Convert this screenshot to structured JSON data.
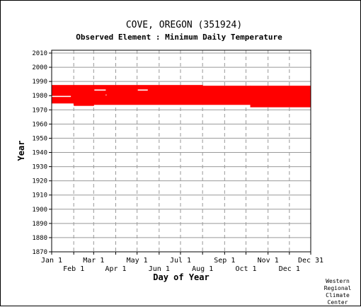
{
  "chart_data": {
    "type": "bar",
    "title": "COVE, OREGON   (351924)",
    "subtitle": "Observed Element : Minimum Daily Temperature",
    "xlabel": "Day of Year",
    "ylabel": "Year",
    "ylim": [
      1870,
      2012
    ],
    "yticks": [
      1870,
      1880,
      1890,
      1900,
      1910,
      1920,
      1930,
      1940,
      1950,
      1960,
      1970,
      1980,
      1990,
      2000,
      2010
    ],
    "xlim": [
      1,
      365
    ],
    "xticks_top_row": [
      {
        "label": "Jan 1",
        "day": 1
      },
      {
        "label": "Mar 1",
        "day": 60
      },
      {
        "label": "May 1",
        "day": 121
      },
      {
        "label": "Jul 1",
        "day": 182
      },
      {
        "label": "Sep 1",
        "day": 244
      },
      {
        "label": "Nov 1",
        "day": 305
      },
      {
        "label": "Dec 31",
        "day": 365
      }
    ],
    "xticks_bottom_row": [
      {
        "label": "Feb 1",
        "day": 32
      },
      {
        "label": "Apr 1",
        "day": 91
      },
      {
        "label": "Jun 1",
        "day": 152
      },
      {
        "label": "Aug 1",
        "day": 213
      },
      {
        "label": "Oct 1",
        "day": 274
      },
      {
        "label": "Dec 1",
        "day": 335
      }
    ],
    "series": [
      {
        "color": "#ff0000",
        "segments": [
          {
            "day_start": 1,
            "day_end": 32,
            "year_start": 1974.5,
            "year_end": 1987.5
          },
          {
            "day_start": 32,
            "day_end": 60,
            "year_start": 1972.8,
            "year_end": 1987.5
          },
          {
            "day_start": 60,
            "day_end": 213,
            "year_start": 1973.5,
            "year_end": 1987.5
          },
          {
            "day_start": 213,
            "day_end": 280,
            "year_start": 1973.5,
            "year_end": 1987.0
          },
          {
            "day_start": 280,
            "day_end": 365,
            "year_start": 1971.8,
            "year_end": 1987.0
          }
        ],
        "gaps": [
          {
            "day_start": 1,
            "day_end": 28,
            "year": 1979.5
          },
          {
            "day_start": 61,
            "day_end": 77,
            "year": 1984.0
          },
          {
            "day_start": 122,
            "day_end": 136,
            "year": 1984.0
          },
          {
            "day_start": 77,
            "day_end": 78,
            "year": 1980.5
          }
        ]
      }
    ],
    "grid": true,
    "credit": [
      "Western",
      "Regional",
      "Climate",
      "Center"
    ]
  }
}
